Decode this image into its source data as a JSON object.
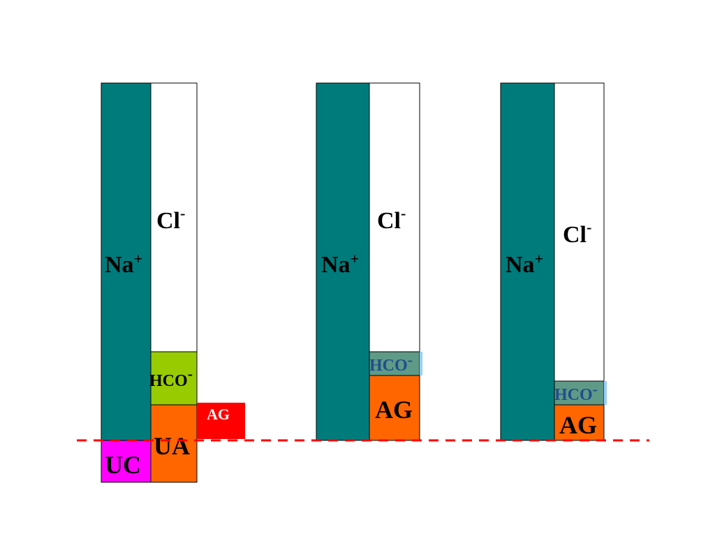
{
  "colors": {
    "sodium": "#007b7b",
    "chloride": "#ffffff",
    "bicarb_green": "#99cc00",
    "bicarb_gray": "#5f9a87",
    "bicarb_edge": "#99ccff",
    "anion_gap": "#ff6600",
    "anion_gap_red": "#ff0000",
    "unmeasured_cation": "#ff00ff",
    "baseline": "#ff0000"
  },
  "columns": [
    {
      "sodium_label": "Na",
      "sodium_sup": "+",
      "chloride_label": "Cl",
      "chloride_sup": "-",
      "bicarb_label": "HCO",
      "bicarb_sup": "-",
      "ua_label": "UA",
      "ag_label": "AG",
      "uc_label": "UC"
    },
    {
      "sodium_label": "Na",
      "sodium_sup": "+",
      "chloride_label": "Cl",
      "chloride_sup": "-",
      "bicarb_label": "HCO",
      "bicarb_sup": "-",
      "ag_label": "AG"
    },
    {
      "sodium_label": "Na",
      "sodium_sup": "+",
      "chloride_label": "Cl",
      "chloride_sup": "-",
      "bicarb_label": "HCO",
      "bicarb_sup": "-",
      "ag_label": "AG"
    }
  ]
}
